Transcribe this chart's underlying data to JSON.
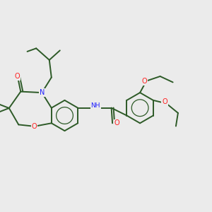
{
  "background_color": "#ebebeb",
  "bond_color": "#2d5a27",
  "n_color": "#2020ff",
  "o_color": "#ff2020",
  "lw": 1.4,
  "figsize": [
    3.0,
    3.0
  ],
  "dpi": 100,
  "xlim": [
    0,
    10
  ],
  "ylim": [
    0,
    10
  ]
}
